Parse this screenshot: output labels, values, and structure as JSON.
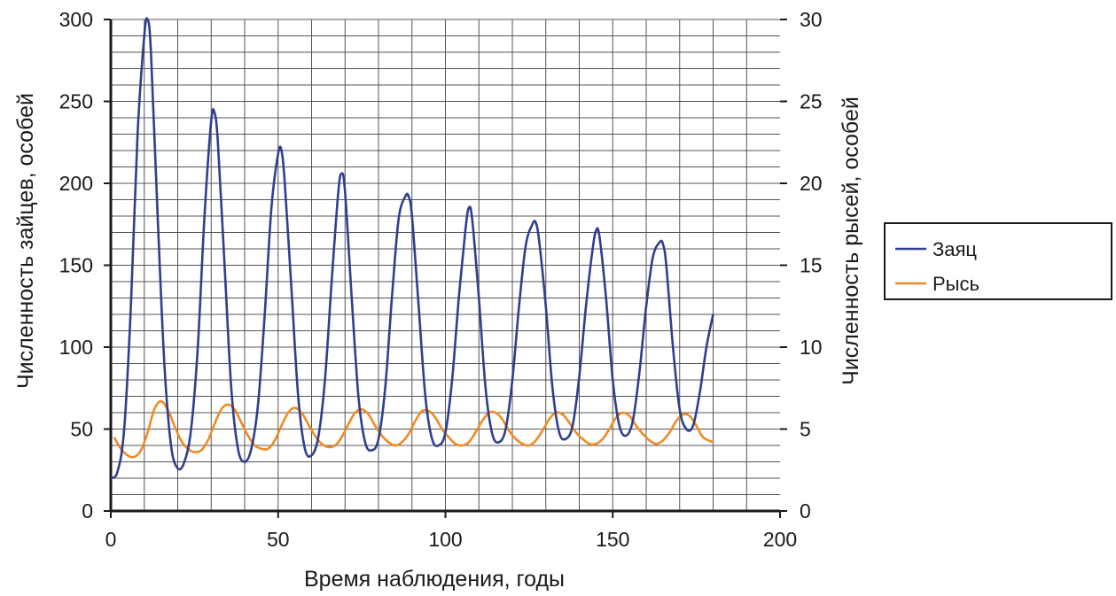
{
  "chart_data": {
    "type": "line",
    "title": "",
    "xlabel": "Время наблюдения, годы",
    "ylabel_left": "Численность зайцев, особей",
    "ylabel_right": "Численность рысей, особей",
    "xlim": [
      0,
      200
    ],
    "ylim_left": [
      0,
      300
    ],
    "ylim_right": [
      0,
      30
    ],
    "x_ticks": [
      "0",
      "50",
      "100",
      "150",
      "200"
    ],
    "y_left_ticks": [
      "0",
      "50",
      "100",
      "150",
      "200",
      "250",
      "300"
    ],
    "y_right_ticks": [
      "0",
      "5",
      "10",
      "15",
      "20",
      "25",
      "30"
    ],
    "grid": true,
    "legend_position": "right",
    "series": [
      {
        "name": "Заяц",
        "axis": "left",
        "color": "#2e3f8f",
        "x": [
          0,
          2,
          4,
          6,
          8,
          10,
          11,
          12,
          14,
          16,
          18,
          20,
          22,
          24,
          26,
          28,
          30,
          31,
          32,
          34,
          36,
          38,
          40,
          42,
          44,
          46,
          48,
          50,
          51,
          52,
          54,
          56,
          58,
          60,
          62,
          64,
          66,
          68,
          69,
          70,
          72,
          74,
          76,
          78,
          80,
          82,
          84,
          86,
          88,
          89,
          90,
          92,
          94,
          96,
          98,
          100,
          102,
          104,
          106,
          107,
          108,
          110,
          112,
          114,
          116,
          118,
          120,
          122,
          124,
          126,
          127,
          128,
          130,
          132,
          134,
          136,
          138,
          140,
          142,
          144,
          145,
          146,
          148,
          150,
          152,
          154,
          156,
          158,
          160,
          162,
          164,
          165,
          166,
          168,
          170,
          172,
          174,
          176,
          178,
          180
        ],
        "values": [
          20,
          24,
          50,
          125,
          230,
          290,
          300,
          280,
          180,
          90,
          40,
          26,
          30,
          50,
          100,
          180,
          238,
          243,
          225,
          150,
          75,
          38,
          30,
          38,
          65,
          120,
          185,
          218,
          220,
          200,
          135,
          70,
          38,
          34,
          45,
          80,
          140,
          195,
          206,
          195,
          130,
          70,
          42,
          37,
          44,
          75,
          130,
          178,
          192,
          192,
          180,
          125,
          70,
          44,
          40,
          48,
          80,
          130,
          172,
          185,
          178,
          130,
          75,
          47,
          42,
          50,
          80,
          125,
          162,
          175,
          176,
          165,
          125,
          75,
          48,
          44,
          52,
          82,
          125,
          160,
          171,
          168,
          130,
          80,
          52,
          46,
          55,
          85,
          125,
          155,
          164,
          163,
          150,
          100,
          62,
          50,
          52,
          72,
          100,
          120
        ]
      },
      {
        "name": "Рысь",
        "axis": "right",
        "color": "#f08a24",
        "x": [
          1,
          3,
          5,
          7,
          9,
          11,
          13,
          15,
          17,
          19,
          21,
          23,
          25,
          27,
          29,
          31,
          33,
          35,
          37,
          39,
          41,
          43,
          45,
          47,
          49,
          51,
          53,
          55,
          57,
          59,
          61,
          63,
          65,
          67,
          69,
          71,
          73,
          75,
          77,
          79,
          81,
          83,
          85,
          87,
          89,
          91,
          93,
          95,
          97,
          99,
          101,
          103,
          105,
          107,
          109,
          111,
          113,
          115,
          117,
          119,
          121,
          123,
          125,
          127,
          129,
          131,
          133,
          135,
          137,
          139,
          141,
          143,
          145,
          147,
          149,
          151,
          153,
          155,
          157,
          159,
          161,
          163,
          165,
          167,
          169,
          171,
          173,
          175,
          177,
          180
        ],
        "values": [
          4.5,
          3.8,
          3.4,
          3.3,
          3.7,
          4.8,
          6.2,
          6.7,
          6.2,
          5.2,
          4.3,
          3.8,
          3.6,
          3.7,
          4.3,
          5.3,
          6.2,
          6.5,
          6.2,
          5.4,
          4.6,
          4.0,
          3.8,
          3.8,
          4.3,
          5.2,
          6.0,
          6.3,
          6.0,
          5.3,
          4.6,
          4.1,
          3.9,
          4.0,
          4.5,
          5.3,
          6.0,
          6.2,
          5.9,
          5.2,
          4.6,
          4.2,
          4.0,
          4.2,
          4.7,
          5.5,
          6.1,
          6.1,
          5.7,
          5.0,
          4.5,
          4.1,
          4.0,
          4.2,
          4.8,
          5.5,
          6.0,
          6.0,
          5.6,
          4.9,
          4.4,
          4.1,
          4.0,
          4.3,
          4.9,
          5.6,
          6.0,
          5.9,
          5.4,
          4.8,
          4.4,
          4.1,
          4.1,
          4.4,
          5.0,
          5.7,
          6.0,
          5.8,
          5.2,
          4.7,
          4.3,
          4.1,
          4.3,
          4.8,
          5.5,
          5.9,
          5.8,
          5.2,
          4.5,
          4.2
        ]
      }
    ]
  }
}
